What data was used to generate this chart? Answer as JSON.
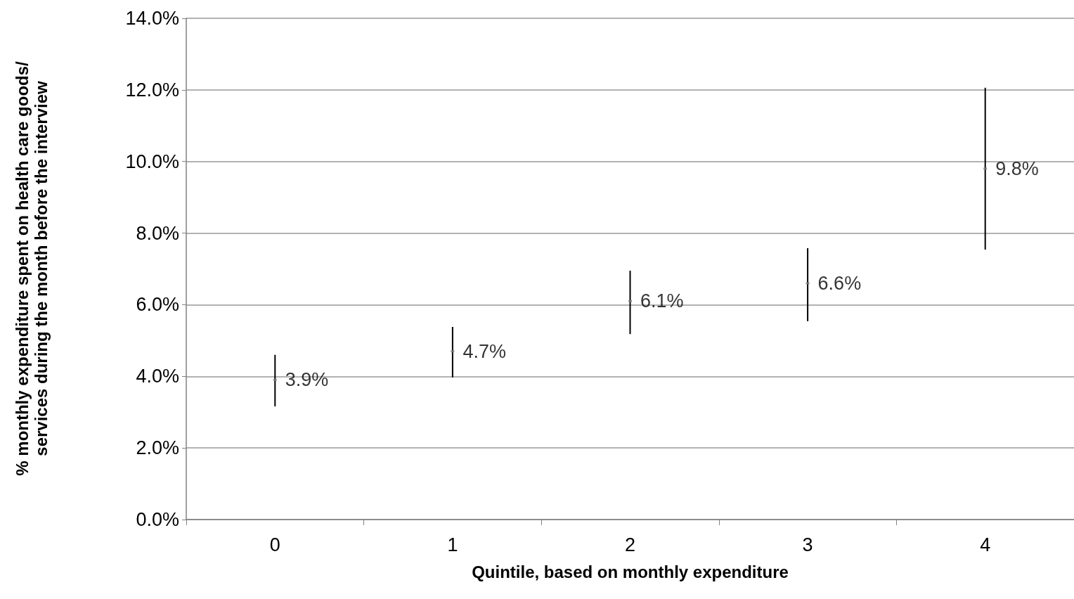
{
  "chart_data": {
    "type": "scatter",
    "xlabel": "Quintile, based on monthly expenditure",
    "ylabel": "% monthly expenditure spent on health care goods/services during the month before the interview",
    "categories": [
      "0",
      "1",
      "2",
      "3",
      "4"
    ],
    "series": [
      {
        "color": "#808080",
        "values": [
          3.9,
          4.7,
          6.1,
          6.6,
          9.8
        ],
        "value_labels": [
          "3.9%",
          "4.7%",
          "6.1%",
          "6.6%",
          "9.8%"
        ],
        "errors": [
          [
            3.16,
            4.6
          ],
          [
            3.97,
            5.38
          ],
          [
            5.18,
            6.95
          ],
          [
            5.54,
            7.58
          ],
          [
            7.54,
            12.06
          ]
        ]
      }
    ],
    "ylim": [
      0,
      14
    ],
    "yticks": [
      {
        "value": 0,
        "label": "0.0%"
      },
      {
        "value": 2,
        "label": "2.0%"
      },
      {
        "value": 4,
        "label": "4.0%"
      },
      {
        "value": 6,
        "label": "6.0%"
      },
      {
        "value": 8,
        "label": "8.0%"
      },
      {
        "value": 10,
        "label": "10.0%"
      },
      {
        "value": 12,
        "label": "12.0%"
      },
      {
        "value": 14,
        "label": "14.0%"
      }
    ],
    "grid": "y",
    "marker": "square"
  }
}
